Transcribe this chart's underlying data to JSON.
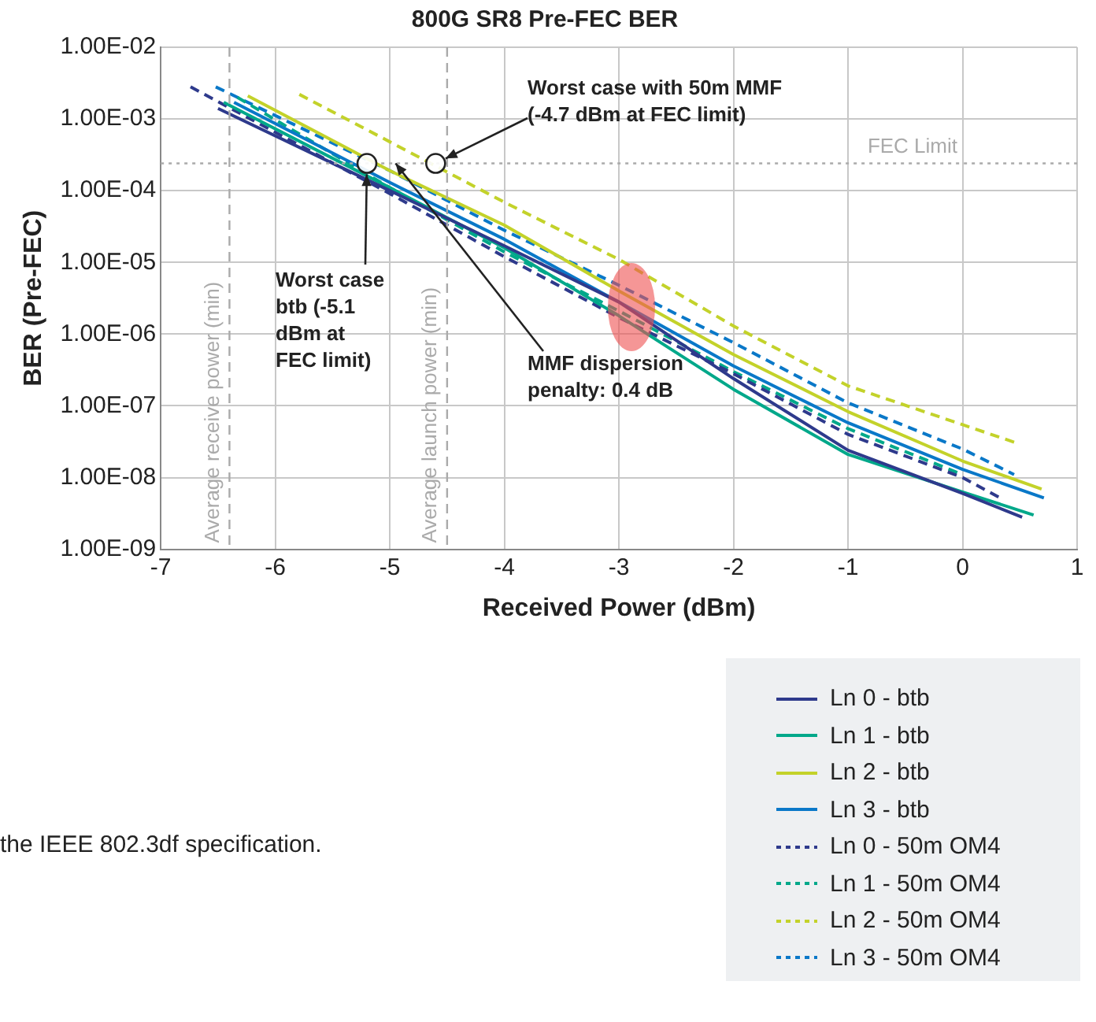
{
  "chart_data": {
    "type": "line",
    "title": "800G SR8 Pre-FEC BER",
    "xlabel": "Received Power (dBm)",
    "ylabel": "BER (Pre-FEC)",
    "xlim": [
      -7,
      1
    ],
    "xticks": [
      -7,
      -6,
      -5,
      -4,
      -3,
      -2,
      -1,
      0,
      1
    ],
    "ylim": [
      1e-09,
      0.01
    ],
    "yticks": [
      {
        "value": 1e-09,
        "label": "1.00E-09"
      },
      {
        "value": 1e-08,
        "label": "1.00E-08"
      },
      {
        "value": 1e-07,
        "label": "1.00E-07"
      },
      {
        "value": 1e-06,
        "label": "1.00E-06"
      },
      {
        "value": 1e-05,
        "label": "1.00E-05"
      },
      {
        "value": 0.0001,
        "label": "1.00E-04"
      },
      {
        "value": 0.001,
        "label": "1.00E-03"
      },
      {
        "value": 0.01,
        "label": "1.00E-02"
      }
    ],
    "log": "y",
    "grid": true,
    "legend": "bottom right",
    "marker": "none",
    "series": [
      {
        "name": "Ln 0 - btb",
        "color": "#2e3a8c",
        "line_style": "solid",
        "x": [
          -6.5,
          -5,
          -4,
          -3,
          -2,
          -1,
          0,
          0.52
        ],
        "values": [
          0.0014,
          0.0001,
          1.7e-05,
          2.8e-06,
          2.4e-07,
          2.4e-08,
          6e-09,
          2.8e-09
        ]
      },
      {
        "name": "Ln 1 - btb",
        "color": "#00a88a",
        "line_style": "solid",
        "x": [
          -6.45,
          -5,
          -4,
          -3,
          -2,
          -1,
          0,
          0.62
        ],
        "values": [
          0.0017,
          0.00011,
          1.6e-05,
          1.8e-06,
          1.7e-07,
          2.1e-08,
          6.3e-09,
          3e-09
        ]
      },
      {
        "name": "Ln 2 - btb",
        "color": "#c3d22a",
        "line_style": "solid",
        "x": [
          -6.24,
          -5,
          -4,
          -3,
          -2,
          -1,
          0,
          0.69
        ],
        "values": [
          0.0021,
          0.00019,
          3.3e-05,
          4e-06,
          5.2e-07,
          8.3e-08,
          1.7e-08,
          6.9e-09
        ]
      },
      {
        "name": "Ln 3 - btb",
        "color": "#0a78c8",
        "line_style": "solid",
        "x": [
          -6.36,
          -5,
          -4,
          -3,
          -2,
          -1,
          0,
          0.71
        ],
        "values": [
          0.0017,
          0.00013,
          2.1e-05,
          2.8e-06,
          3.6e-07,
          5.8e-08,
          1.3e-08,
          5.2e-09
        ]
      },
      {
        "name": "Ln 0 - 50m OM4",
        "color": "#2e3a8c",
        "line_style": "dashed",
        "x": [
          -6.74,
          -5,
          -4,
          -3,
          -2,
          -1,
          0,
          0.33
        ],
        "values": [
          0.0028,
          9.1e-05,
          1.2e-05,
          1.7e-06,
          2.8e-07,
          4e-08,
          1e-08,
          5.2e-09
        ]
      },
      {
        "name": "Ln 1 - 50m OM4",
        "color": "#00a88a",
        "line_style": "dashed",
        "x": [
          -6.33,
          -5,
          -4,
          -3,
          -2,
          -1,
          0
        ],
        "values": [
          0.002,
          0.00011,
          1.4e-05,
          2.1e-06,
          3e-07,
          4.8e-08,
          1.1e-08
        ]
      },
      {
        "name": "Ln 2 - 50m OM4",
        "color": "#c3d22a",
        "line_style": "dashed",
        "x": [
          -5.79,
          -5,
          -4,
          -3,
          -2,
          -1,
          0.48
        ],
        "values": [
          0.0022,
          0.00048,
          6.9e-05,
          1.1e-05,
          1.3e-06,
          1.9e-07,
          3e-08
        ]
      },
      {
        "name": "Ln 3 - 50m OM4",
        "color": "#0a78c8",
        "line_style": "dashed",
        "x": [
          -6.52,
          -5,
          -4,
          -3,
          -2,
          -1,
          0,
          0.45
        ],
        "values": [
          0.0028,
          0.00019,
          2.8e-05,
          4.8e-06,
          7.6e-07,
          1.1e-07,
          2.5e-08,
          1.1e-08
        ]
      }
    ],
    "ref_lines": [
      {
        "axis": "x",
        "value": -6.4,
        "label": "Average receive power (min)",
        "color": "#aaaaaa",
        "line_style": "dashed"
      },
      {
        "axis": "x",
        "value": -4.5,
        "label": "Average launch power (min)",
        "color": "#aaaaaa",
        "line_style": "dashed"
      },
      {
        "axis": "y",
        "value": 0.00024,
        "label": "FEC Limit",
        "color": "#aaaaaa",
        "line_style": "dotted"
      }
    ],
    "annotations": [
      {
        "text": "Worst case btb (-5.1 dBm at FEC limit)",
        "x": -5.2,
        "y": 0.00024
      },
      {
        "text": "Worst case with 50m MMF (-4.7 dBm at FEC limit)",
        "x": -4.6,
        "y": 0.00024
      },
      {
        "text": "MMF dispersion penalty: 0.4 dB",
        "x": -4.95,
        "y": 0.00024
      },
      "the IEEE 802.3df specification."
    ]
  }
}
